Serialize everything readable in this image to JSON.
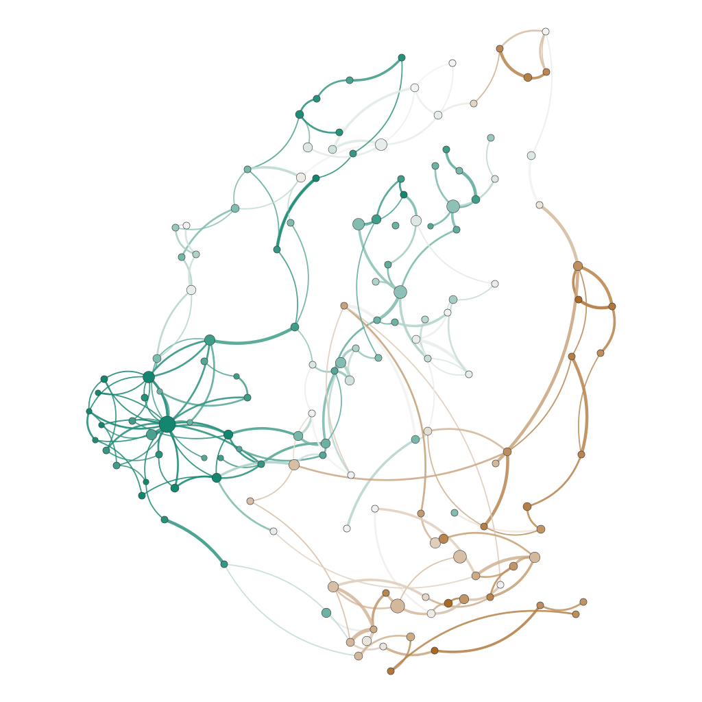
{
  "diagram": {
    "type": "network-graph",
    "edge_style": "curved",
    "color_scale": {
      "low": "#12866f",
      "mid": "#f2f2f2",
      "high": "#a6611a"
    },
    "node_count": 200
  }
}
